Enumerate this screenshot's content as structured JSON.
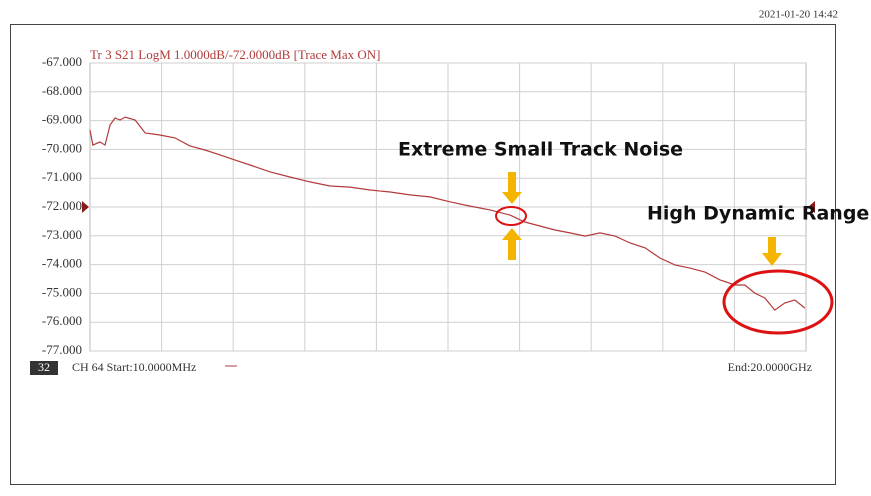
{
  "chart_data": {
    "type": "line",
    "timestamp": "2021-01-20 14:42",
    "header": "Tr 3  S21 LogM 1.0000dB/-72.0000dB  [Trace Max ON]",
    "channel_badge": "32",
    "start_label": "CH 64 Start:10.0000MHz",
    "end_label": "End:20.0000GHz",
    "annotations": [
      "Extreme Small Track Noise",
      "High Dynamic Range"
    ],
    "reference": -72,
    "xlim": [
      0.01,
      20
    ],
    "ylim": [
      -77,
      -67
    ],
    "yticks": [
      {
        "value": -67,
        "label": "-67.000"
      },
      {
        "value": -68,
        "label": "-68.000"
      },
      {
        "value": -69,
        "label": "-69.000"
      },
      {
        "value": -70,
        "label": "-70.000"
      },
      {
        "value": -71,
        "label": "-71.000"
      },
      {
        "value": -72,
        "label": "-72.000"
      },
      {
        "value": -73,
        "label": "-73.000"
      },
      {
        "value": -74,
        "label": "-74.000"
      },
      {
        "value": -75,
        "label": "-75.000"
      },
      {
        "value": -76,
        "label": "-76.000"
      },
      {
        "value": -77,
        "label": "-77.000"
      }
    ],
    "grid": true,
    "x": [
      0.01,
      0.09,
      0.29,
      0.43,
      0.57,
      0.71,
      0.85,
      0.99,
      1.27,
      1.55,
      1.96,
      2.38,
      2.8,
      3.22,
      3.64,
      4.06,
      4.48,
      5.04,
      5.59,
      6.15,
      6.71,
      7.27,
      7.83,
      8.39,
      8.94,
      9.5,
      10.06,
      10.62,
      11.18,
      11.74,
      12.15,
      12.57,
      12.99,
      13.41,
      13.83,
      14.25,
      14.67,
      15.09,
      15.51,
      15.92,
      16.34,
      16.76,
      17.18,
      17.6,
      18.02,
      18.29,
      18.57,
      18.85,
      19.13,
      19.41,
      19.69,
      19.97
    ],
    "series": [
      {
        "name": "Tr 3",
        "color": "#b23a3a",
        "values": [
          -69.33,
          -69.85,
          -69.74,
          -69.85,
          -69.15,
          -68.91,
          -68.98,
          -68.88,
          -68.98,
          -69.43,
          -69.5,
          -69.6,
          -69.88,
          -70.02,
          -70.19,
          -70.37,
          -70.54,
          -70.78,
          -70.96,
          -71.13,
          -71.27,
          -71.31,
          -71.41,
          -71.48,
          -71.58,
          -71.65,
          -71.82,
          -71.97,
          -72.1,
          -72.28,
          -72.52,
          -72.66,
          -72.8,
          -72.9,
          -73.01,
          -72.9,
          -73.01,
          -73.25,
          -73.42,
          -73.77,
          -74.01,
          -74.12,
          -74.26,
          -74.53,
          -74.71,
          -74.71,
          -74.99,
          -75.16,
          -75.58,
          -75.33,
          -75.23,
          -75.51
        ]
      }
    ]
  }
}
